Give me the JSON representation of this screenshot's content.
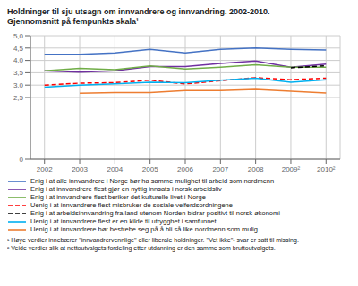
{
  "chart_data": {
    "type": "line",
    "title": "Holdninger til sju utsagn om innvandrere og innvandring. 2002-2010.",
    "subtitle": "Gjennomsnitt på fempunkts skala¹",
    "x": [
      2002,
      2003,
      2004,
      2005,
      2006,
      2007,
      2008,
      2009,
      2010
    ],
    "xlim": [
      2001.6,
      2010.4
    ],
    "xticks": [
      2002,
      2003,
      2004,
      2005,
      2006,
      2007,
      2008,
      {
        "value": 2009,
        "label": "2009²"
      },
      {
        "value": 2010,
        "label": "2010²"
      }
    ],
    "ylim": [
      0,
      5.0
    ],
    "yticks": [
      0,
      {
        "value": 2.5,
        "label": "2,5"
      },
      {
        "value": 3.0,
        "label": "3,0"
      },
      {
        "value": 3.5,
        "label": "3,5"
      },
      {
        "value": 4.0,
        "label": "4,0"
      },
      {
        "value": 4.5,
        "label": "4,5"
      },
      {
        "value": 5.0,
        "label": "5,0"
      }
    ],
    "grid": true,
    "legend": "bottom",
    "series": [
      {
        "name": "Enig i at alle innvandrere i Norge bør ha samme mulighet til arbeid som nordmenn",
        "color": "#4472C4",
        "line_style": "solid",
        "values": [
          4.25,
          4.25,
          4.3,
          4.45,
          4.3,
          4.45,
          4.5,
          4.45,
          4.42
        ]
      },
      {
        "name": "Enig i at innvandrere flest gjør en nyttig innsats i norsk arbeidsliv",
        "color": "#7030A0",
        "line_style": "solid",
        "values": [
          3.58,
          3.52,
          3.58,
          3.75,
          3.75,
          3.88,
          3.98,
          3.72,
          3.85
        ]
      },
      {
        "name": "Enig i at innvandrere flest beriker det kulturelle livet i Norge",
        "color": "#70AD47",
        "line_style": "solid",
        "values": [
          3.58,
          3.68,
          3.62,
          3.78,
          3.65,
          3.72,
          3.82,
          3.72,
          3.72
        ]
      },
      {
        "name": "Uenig i at innvandrere flest misbruker de sosiale velferdsordningene",
        "color": "#FF0000",
        "line_style": "dashed",
        "values": [
          3.0,
          3.08,
          3.1,
          3.2,
          3.05,
          3.18,
          3.3,
          3.22,
          3.28
        ]
      },
      {
        "name": "Enig i at arbeidsinnvandring fra land utenom Norden bidrar positivt til norsk økonomi",
        "color": "#000000",
        "line_style": "dashed",
        "values": [
          null,
          null,
          null,
          null,
          null,
          null,
          null,
          3.7,
          3.78
        ]
      },
      {
        "name": "Uenig i at innvandrere flest er en kilde til utrygghet i samfunnet",
        "color": "#00B0F0",
        "line_style": "solid",
        "values": [
          2.92,
          3.0,
          3.05,
          3.12,
          3.1,
          3.2,
          3.28,
          3.12,
          3.22
        ]
      },
      {
        "name": "Uenig i at innvandrere bør bestrebe seg på å bli så like nordmenn som mulig",
        "color": "#ED7D31",
        "line_style": "solid",
        "values": [
          null,
          2.67,
          2.7,
          2.7,
          2.78,
          2.78,
          2.83,
          2.75,
          2.68
        ]
      }
    ],
    "annotations": [
      "¹ Høye verdier innebærer ''innvandrervennlige'' eller liberale holdninger. ''Vet ikke''- svar er satt til missing.",
      "² Veide verdier slik at nettoutvalgets fordeling etter utdanning er den samme som bruttoutvalgets."
    ]
  }
}
